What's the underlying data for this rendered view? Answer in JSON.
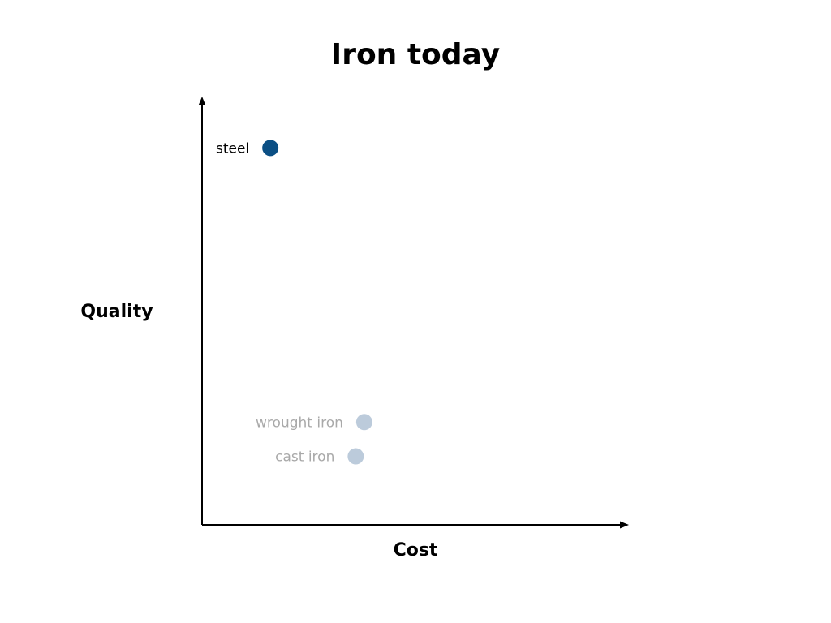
{
  "chart_data": {
    "type": "scatter",
    "title": "Iron today",
    "xlabel": "Cost",
    "ylabel": "Quality",
    "xlim": [
      0,
      100
    ],
    "ylim": [
      0,
      100
    ],
    "grid": false,
    "legend": "none",
    "points": [
      {
        "label": "steel",
        "x": 16,
        "y": 88,
        "color": "#0b4f84",
        "label_color": "#000000"
      },
      {
        "label": "wrought iron",
        "x": 38,
        "y": 24,
        "color": "#bccbdb",
        "label_color": "#a9a9a9"
      },
      {
        "label": "cast iron",
        "x": 36,
        "y": 16,
        "color": "#bccbdb",
        "label_color": "#a9a9a9"
      }
    ]
  }
}
